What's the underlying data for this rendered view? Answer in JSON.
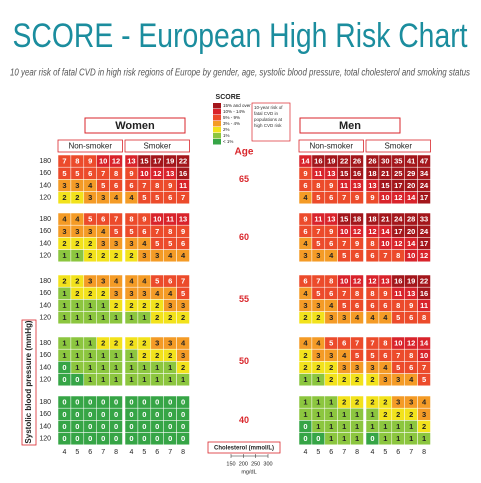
{
  "chart_data": {
    "type": "heatmap",
    "title": "SCORE - European High Risk Chart",
    "subtitle": "10 year risk of fatal CVD in high risk regions of Europe by gender, age, systolic blood pressure, total cholesterol and smoking status",
    "legend_title": "SCORE",
    "legend_note": "10-year risk of fatal CVD in populations at high CVD risk",
    "age_label": "Age",
    "y_label": "Systolic blood pressure (mmHg)",
    "x_label": "Cholesterol (mmol/L)",
    "x2_label": "mg/dL",
    "ages": [
      65,
      60,
      55,
      50,
      40
    ],
    "sbp": [
      180,
      160,
      140,
      120
    ],
    "cholesterol": [
      4,
      5,
      6,
      7,
      8
    ],
    "cholesterol_mgdl": [
      150,
      200,
      250,
      300
    ],
    "color_scale": [
      {
        "label": "15% and over",
        "min": 15,
        "color": "#a3161b"
      },
      {
        "label": "10% - 14%",
        "min": 10,
        "color": "#d9232b"
      },
      {
        "label": "5% - 9%",
        "min": 5,
        "color": "#ec4b2b"
      },
      {
        "label": "3% - 4%",
        "min": 3,
        "color": "#f49b26"
      },
      {
        "label": "2%",
        "min": 2,
        "color": "#f2e21c"
      },
      {
        "label": "1%",
        "min": 1,
        "color": "#8cc63f"
      },
      {
        "label": "< 1%",
        "min": 0,
        "color": "#36a546"
      }
    ],
    "groups": [
      {
        "name": "Women",
        "panels": [
          {
            "name": "Non-smoker",
            "values": [
              [
                [
                  7,
                  8,
                  9,
                  10,
                  12
                ],
                [
                  5,
                  5,
                  6,
                  7,
                  8
                ],
                [
                  3,
                  3,
                  4,
                  5,
                  6
                ],
                [
                  2,
                  2,
                  3,
                  3,
                  4
                ]
              ],
              [
                [
                  4,
                  4,
                  5,
                  6,
                  7
                ],
                [
                  3,
                  3,
                  3,
                  4,
                  5
                ],
                [
                  2,
                  2,
                  2,
                  3,
                  3
                ],
                [
                  1,
                  1,
                  2,
                  2,
                  2
                ]
              ],
              [
                [
                  2,
                  2,
                  3,
                  3,
                  4
                ],
                [
                  1,
                  2,
                  2,
                  2,
                  3
                ],
                [
                  1,
                  1,
                  1,
                  1,
                  2
                ],
                [
                  1,
                  1,
                  1,
                  1,
                  1
                ]
              ],
              [
                [
                  1,
                  1,
                  1,
                  2,
                  2
                ],
                [
                  1,
                  1,
                  1,
                  1,
                  1
                ],
                [
                  0,
                  1,
                  1,
                  1,
                  1
                ],
                [
                  0,
                  0,
                  1,
                  1,
                  1
                ]
              ],
              [
                [
                  0,
                  0,
                  0,
                  0,
                  0
                ],
                [
                  0,
                  0,
                  0,
                  0,
                  0
                ],
                [
                  0,
                  0,
                  0,
                  0,
                  0
                ],
                [
                  0,
                  0,
                  0,
                  0,
                  0
                ]
              ]
            ]
          },
          {
            "name": "Smoker",
            "values": [
              [
                [
                  13,
                  15,
                  17,
                  19,
                  22
                ],
                [
                  9,
                  10,
                  12,
                  13,
                  16
                ],
                [
                  6,
                  7,
                  8,
                  9,
                  11
                ],
                [
                  4,
                  5,
                  5,
                  6,
                  7
                ]
              ],
              [
                [
                  8,
                  9,
                  10,
                  11,
                  13
                ],
                [
                  5,
                  6,
                  7,
                  8,
                  9
                ],
                [
                  3,
                  4,
                  5,
                  5,
                  6
                ],
                [
                  2,
                  3,
                  3,
                  4,
                  4
                ]
              ],
              [
                [
                  4,
                  4,
                  5,
                  6,
                  7
                ],
                [
                  3,
                  3,
                  4,
                  4,
                  5
                ],
                [
                  2,
                  2,
                  2,
                  3,
                  3
                ],
                [
                  1,
                  1,
                  2,
                  2,
                  2
                ]
              ],
              [
                [
                  2,
                  2,
                  3,
                  3,
                  4
                ],
                [
                  1,
                  2,
                  2,
                  2,
                  3
                ],
                [
                  1,
                  1,
                  1,
                  1,
                  2
                ],
                [
                  1,
                  1,
                  1,
                  1,
                  1
                ]
              ],
              [
                [
                  0,
                  0,
                  0,
                  0,
                  0
                ],
                [
                  0,
                  0,
                  0,
                  0,
                  0
                ],
                [
                  0,
                  0,
                  0,
                  0,
                  0
                ],
                [
                  0,
                  0,
                  0,
                  0,
                  0
                ]
              ]
            ]
          }
        ]
      },
      {
        "name": "Men",
        "panels": [
          {
            "name": "Non-smoker",
            "values": [
              [
                [
                  14,
                  16,
                  19,
                  22,
                  26
                ],
                [
                  9,
                  11,
                  13,
                  15,
                  16
                ],
                [
                  6,
                  8,
                  9,
                  11,
                  13
                ],
                [
                  4,
                  5,
                  6,
                  7,
                  9
                ]
              ],
              [
                [
                  9,
                  11,
                  13,
                  15,
                  18
                ],
                [
                  6,
                  7,
                  9,
                  10,
                  12
                ],
                [
                  4,
                  5,
                  6,
                  7,
                  9
                ],
                [
                  3,
                  3,
                  4,
                  5,
                  6
                ]
              ],
              [
                [
                  6,
                  7,
                  8,
                  10,
                  12
                ],
                [
                  4,
                  5,
                  6,
                  7,
                  8
                ],
                [
                  3,
                  3,
                  4,
                  5,
                  6
                ],
                [
                  2,
                  2,
                  3,
                  3,
                  4
                ]
              ],
              [
                [
                  4,
                  4,
                  5,
                  6,
                  7
                ],
                [
                  2,
                  3,
                  3,
                  4,
                  5
                ],
                [
                  2,
                  2,
                  2,
                  3,
                  3
                ],
                [
                  1,
                  1,
                  2,
                  2,
                  2
                ]
              ],
              [
                [
                  1,
                  1,
                  1,
                  2,
                  2
                ],
                [
                  1,
                  1,
                  1,
                  1,
                  1
                ],
                [
                  0,
                  1,
                  1,
                  1,
                  1
                ],
                [
                  0,
                  0,
                  1,
                  1,
                  1
                ]
              ]
            ]
          },
          {
            "name": "Smoker",
            "values": [
              [
                [
                  26,
                  30,
                  35,
                  41,
                  47
                ],
                [
                  18,
                  21,
                  25,
                  29,
                  34
                ],
                [
                  13,
                  15,
                  17,
                  20,
                  24
                ],
                [
                  9,
                  10,
                  12,
                  14,
                  17
                ]
              ],
              [
                [
                  18,
                  21,
                  24,
                  28,
                  33
                ],
                [
                  12,
                  14,
                  17,
                  20,
                  24
                ],
                [
                  8,
                  10,
                  12,
                  14,
                  17
                ],
                [
                  6,
                  7,
                  8,
                  10,
                  12
                ]
              ],
              [
                [
                  12,
                  13,
                  16,
                  19,
                  22
                ],
                [
                  8,
                  9,
                  11,
                  13,
                  16
                ],
                [
                  6,
                  6,
                  8,
                  9,
                  11
                ],
                [
                  4,
                  4,
                  5,
                  6,
                  8
                ]
              ],
              [
                [
                  7,
                  8,
                  10,
                  12,
                  14
                ],
                [
                  5,
                  6,
                  7,
                  8,
                  10
                ],
                [
                  3,
                  4,
                  5,
                  6,
                  7
                ],
                [
                  2,
                  3,
                  3,
                  4,
                  5
                ]
              ],
              [
                [
                  2,
                  2,
                  3,
                  3,
                  4
                ],
                [
                  1,
                  2,
                  2,
                  2,
                  3
                ],
                [
                  1,
                  1,
                  1,
                  1,
                  2
                ],
                [
                  0,
                  1,
                  1,
                  1,
                  1
                ]
              ]
            ]
          }
        ]
      }
    ]
  }
}
